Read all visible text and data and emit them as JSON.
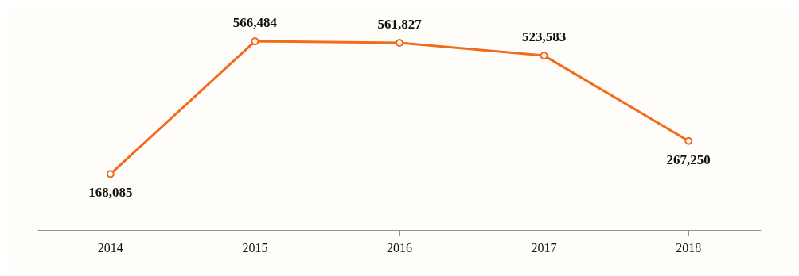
{
  "chart_data": {
    "type": "line",
    "categories": [
      "2014",
      "2015",
      "2016",
      "2017",
      "2018"
    ],
    "series": [
      {
        "color": "#f26b1d",
        "values": [
          168085,
          566484,
          561827,
          523583,
          267250
        ],
        "value_labels": [
          "168,085",
          "566,484",
          "561,827",
          "523,583",
          "267,250"
        ]
      }
    ],
    "marker": "circle",
    "line_style": "solid",
    "grid": false
  }
}
